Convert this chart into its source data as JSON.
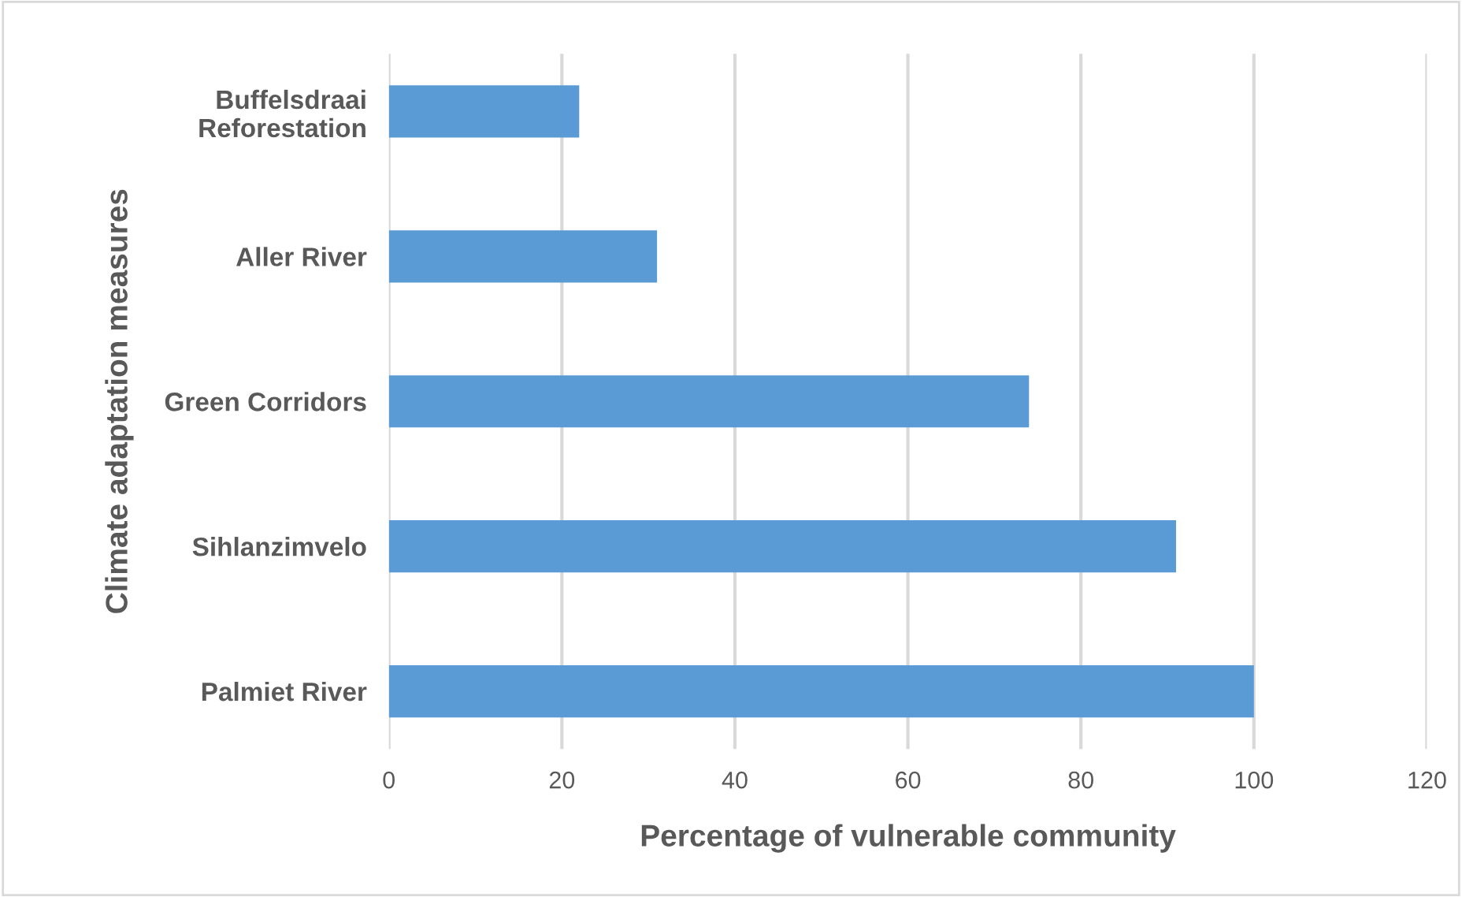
{
  "chart_data": {
    "type": "bar",
    "orientation": "horizontal",
    "xlabel": "Percentage of vulnerable community",
    "ylabel": "Climate adaptation measures",
    "categories": [
      "Buffelsdraai\nReforestation",
      "Aller River",
      "Green Corridors",
      "Sihlanzimvelo",
      "Palmiet River"
    ],
    "values": [
      22,
      31,
      74,
      91,
      100
    ],
    "color": "#5b9bd5",
    "xlim": [
      0,
      120
    ],
    "xticks": [
      0,
      20,
      40,
      60,
      80,
      100,
      120
    ],
    "grid": "x"
  }
}
